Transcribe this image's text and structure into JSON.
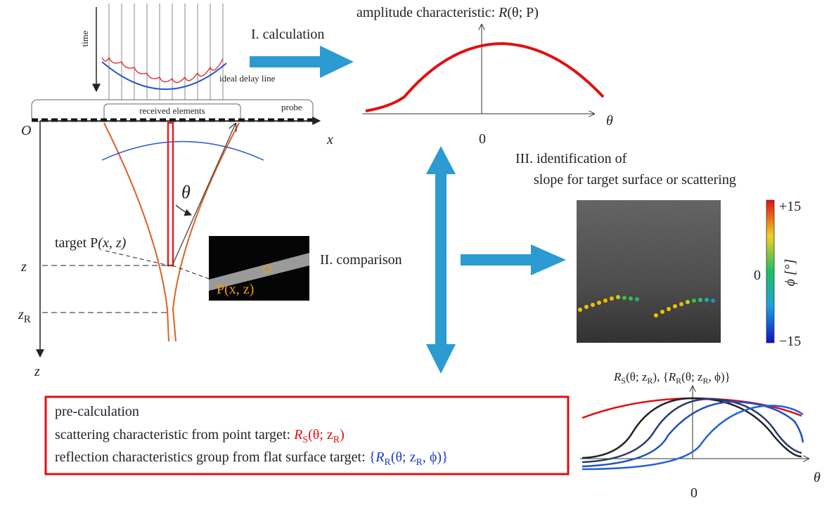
{
  "probe": {
    "time_label": "time",
    "delay_line_label": "ideal delay line",
    "received_elements": "received elements",
    "probe_label": "probe",
    "origin": "O",
    "x_axis": "x",
    "z_axis": "z",
    "theta": "θ",
    "target_label": [
      "target P",
      "(x, z)"
    ],
    "z_mark": "z",
    "zr_mark": [
      "z",
      "R"
    ]
  },
  "inset": {
    "point_label": "P(x, z)"
  },
  "steps": {
    "calculation": "I. calculation",
    "comparison": "II. comparison",
    "identification": [
      "III. identification of",
      "slope for target surface or scattering"
    ]
  },
  "amplitude_plot": {
    "title": [
      "amplitude characteristic: ",
      "R",
      "(θ; P)"
    ],
    "x_label": "θ",
    "zero": "0"
  },
  "colorbar": {
    "max": "+15",
    "mid": "0",
    "min": "−15",
    "label": "ϕ [°]"
  },
  "characteristics_plot": {
    "title": [
      "R",
      "S",
      "(θ; z",
      "R",
      "), {",
      "R",
      "R",
      "(θ; z",
      "R",
      ", ϕ)}"
    ],
    "x_label": "θ",
    "zero": "0"
  },
  "precalc": {
    "heading": "pre-calculation",
    "scattering": "scattering characteristic from point target: ",
    "scattering_formula": [
      "R",
      "S",
      "(θ; z",
      "R",
      ")"
    ],
    "reflection": "reflection characteristics group from flat surface target: ",
    "reflection_formula": [
      "{",
      "R",
      "R",
      "(θ; z",
      "R",
      ", ϕ)}"
    ]
  }
}
